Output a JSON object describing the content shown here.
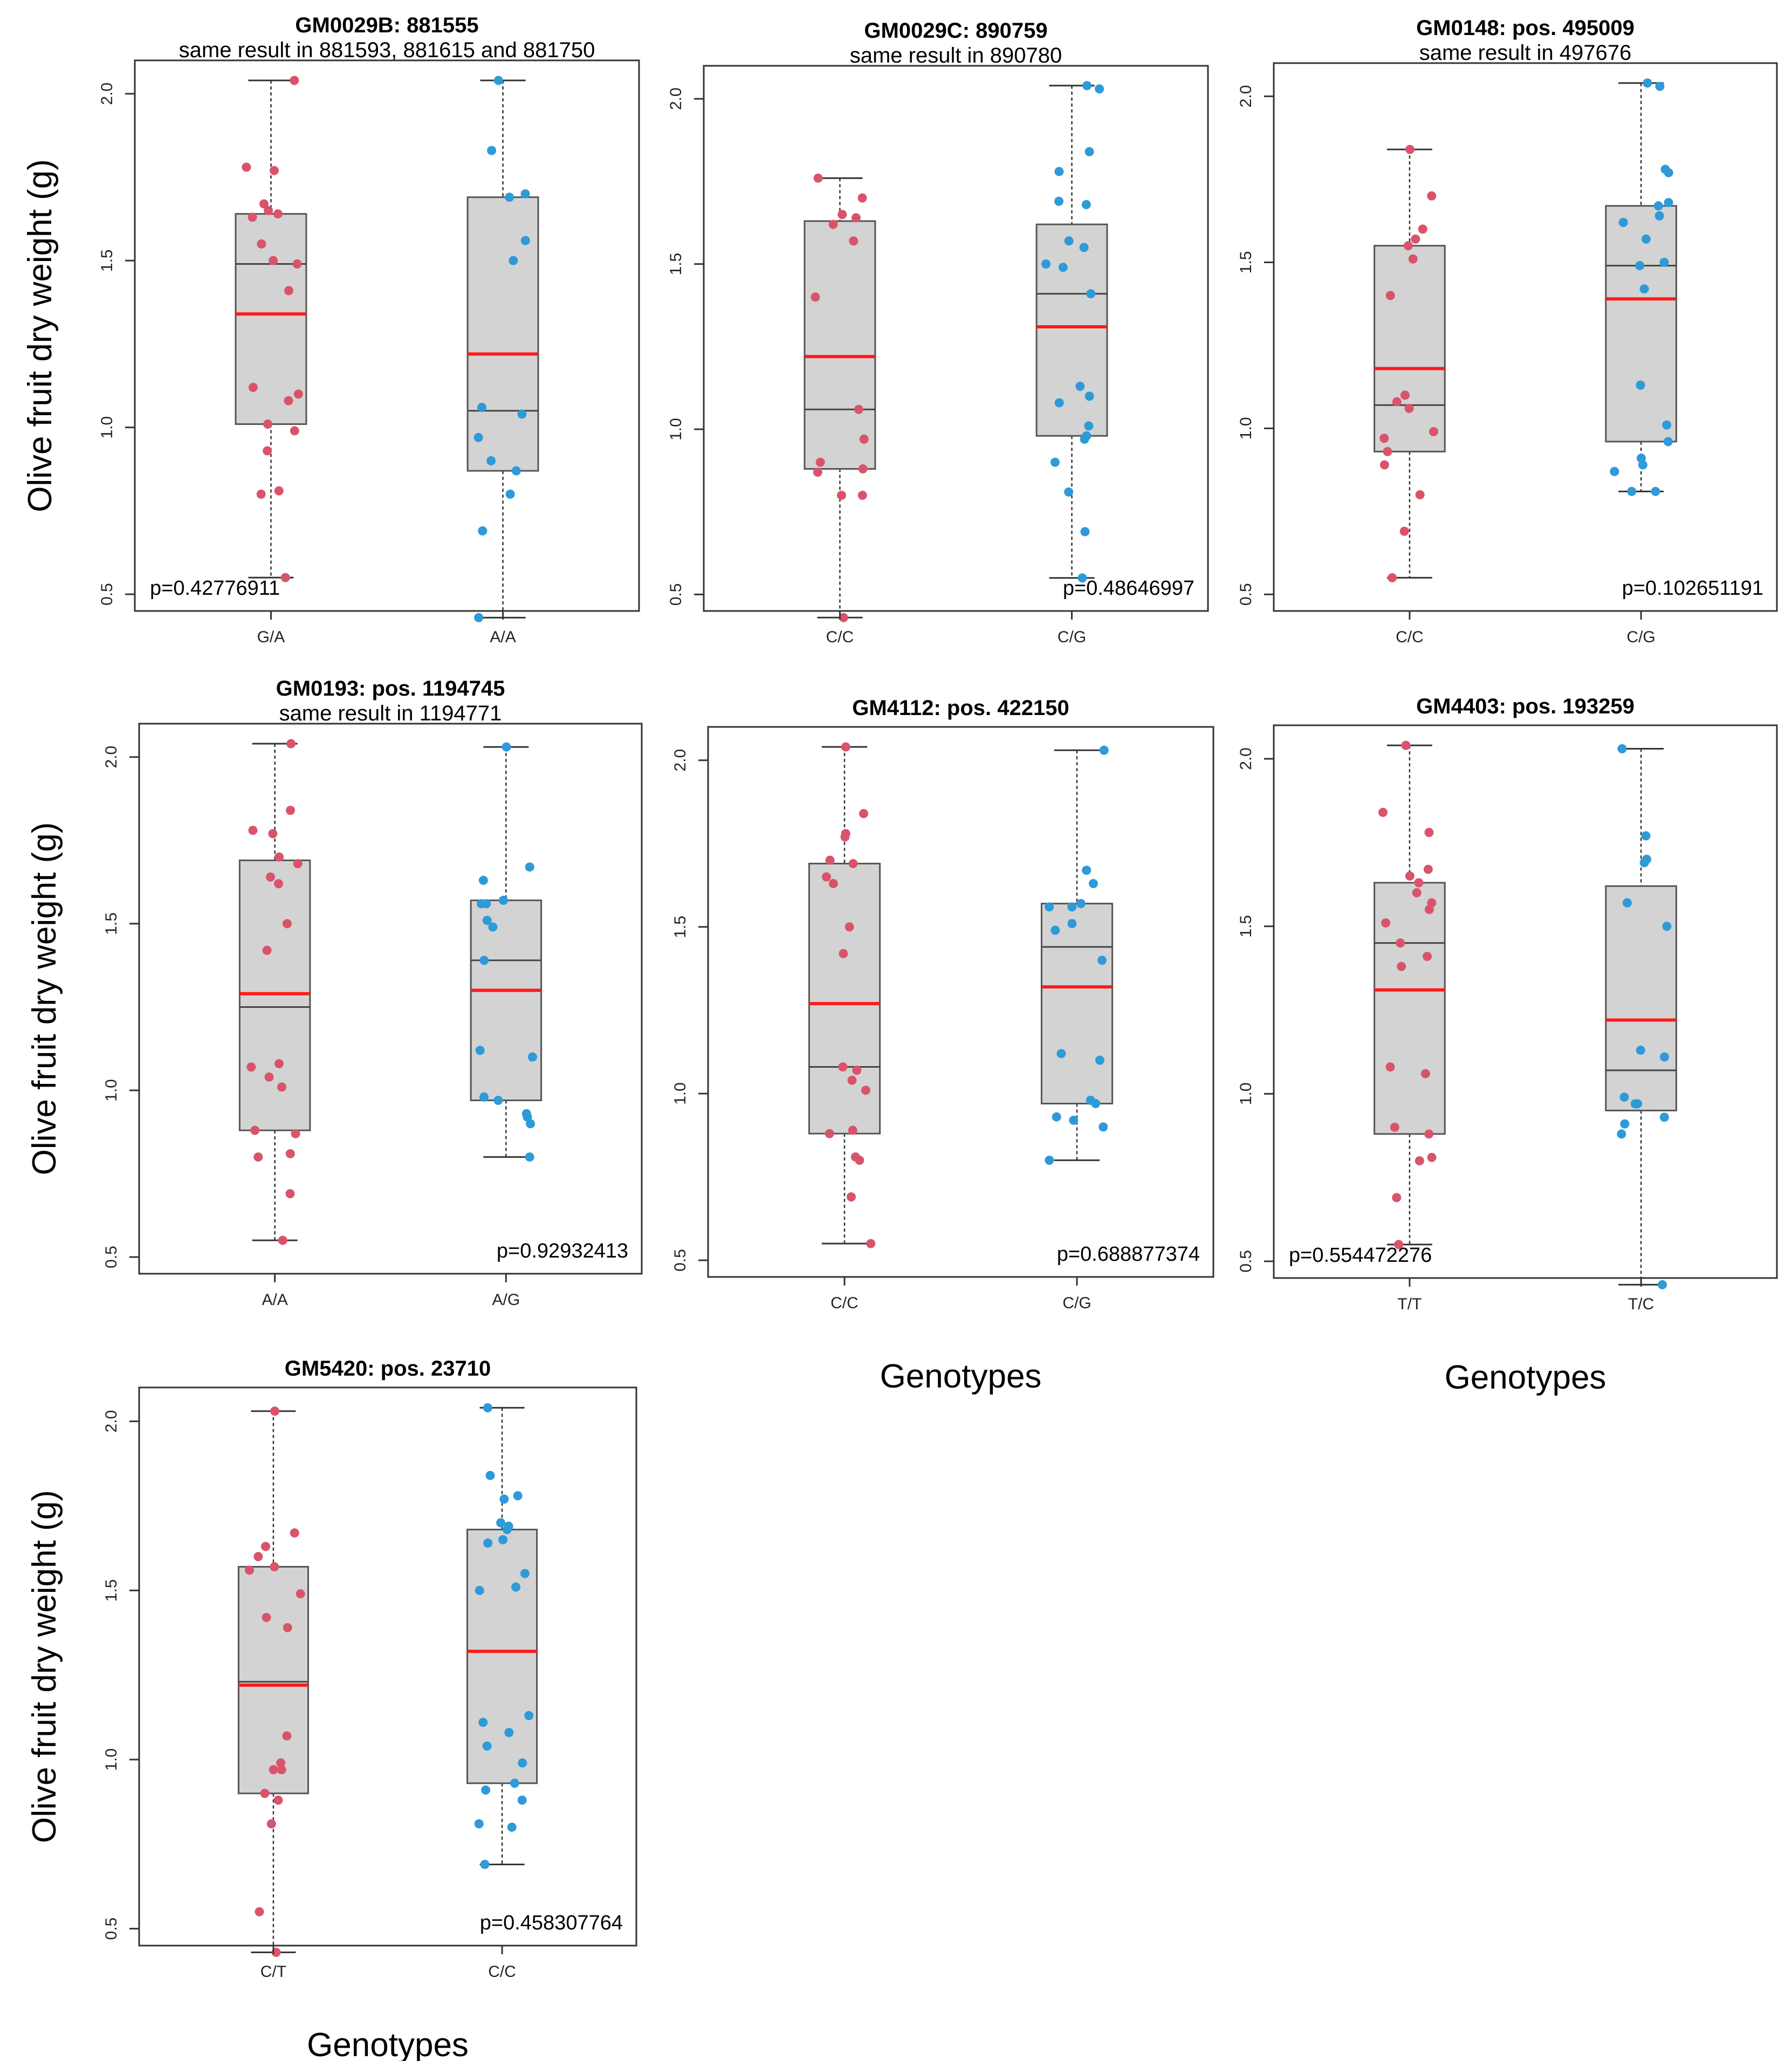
{
  "figure": {
    "ylabel": "Olive fruit dry weight (g)",
    "xlabel": "Genotypes"
  },
  "colors": {
    "group1": "#d9546a",
    "group2": "#2e9ad8",
    "mean": "#ff1a1a",
    "box_fill": "#d3d3d3",
    "box_edge": "#555555"
  },
  "chart_data": [
    {
      "type": "box",
      "title": "GM0029B: 881555",
      "subtitle": "same result in 881593, 881615 and 881750",
      "ylabel": "Olive fruit dry weight (g)",
      "xlabel": "",
      "ylim": [
        0.45,
        2.1
      ],
      "yticks": [
        "0.5",
        "1.0",
        "1.5",
        "2.0"
      ],
      "pvalue": "p=0.42776911",
      "pvalue_position": "bottom-left",
      "groups": [
        {
          "label": "G/A",
          "min": 0.55,
          "q1": 1.01,
          "median": 1.49,
          "q3": 1.64,
          "max": 2.04,
          "mean": 1.34,
          "points": [
            2.04,
            1.78,
            1.77,
            1.67,
            1.65,
            1.64,
            1.63,
            1.55,
            1.5,
            1.49,
            1.41,
            1.12,
            1.1,
            1.08,
            1.01,
            0.99,
            0.93,
            0.81,
            0.8,
            0.55
          ]
        },
        {
          "label": "A/A",
          "min": 0.43,
          "q1": 0.87,
          "median": 1.05,
          "q3": 1.69,
          "max": 2.04,
          "mean": 1.22,
          "points": [
            2.04,
            1.83,
            1.7,
            1.69,
            1.56,
            1.5,
            1.06,
            1.04,
            0.97,
            0.9,
            0.87,
            0.8,
            0.69,
            0.43
          ]
        }
      ]
    },
    {
      "type": "box",
      "title": "GM0029C: 890759",
      "subtitle": "same result in 890780",
      "ylabel": "",
      "xlabel": "",
      "ylim": [
        0.45,
        2.1
      ],
      "yticks": [
        "0.5",
        "1.0",
        "1.5",
        "2.0"
      ],
      "pvalue": "p=0.48646997",
      "pvalue_position": "bottom-right",
      "groups": [
        {
          "label": "C/C",
          "min": 0.43,
          "q1": 0.88,
          "median": 1.06,
          "q3": 1.63,
          "max": 1.76,
          "mean": 1.22,
          "points": [
            1.76,
            1.7,
            1.65,
            1.64,
            1.62,
            1.57,
            1.4,
            1.06,
            0.97,
            0.9,
            0.88,
            0.87,
            0.8,
            0.8,
            0.43
          ]
        },
        {
          "label": "C/G",
          "min": 0.55,
          "q1": 0.98,
          "median": 1.41,
          "q3": 1.62,
          "max": 2.04,
          "mean": 1.31,
          "points": [
            2.04,
            2.03,
            1.84,
            1.78,
            1.69,
            1.68,
            1.57,
            1.55,
            1.5,
            1.49,
            1.41,
            1.13,
            1.1,
            1.08,
            1.01,
            0.98,
            0.97,
            0.9,
            0.81,
            0.69,
            0.55
          ]
        }
      ]
    },
    {
      "type": "box",
      "title": "GM0148: pos. 495009",
      "subtitle": "same result in 497676",
      "ylabel": "",
      "xlabel": "",
      "ylim": [
        0.45,
        2.1
      ],
      "yticks": [
        "0.5",
        "1.0",
        "1.5",
        "2.0"
      ],
      "pvalue": "p=0.102651191",
      "pvalue_position": "bottom-right",
      "groups": [
        {
          "label": "C/C",
          "min": 0.55,
          "q1": 0.93,
          "median": 1.07,
          "q3": 1.55,
          "max": 1.84,
          "mean": 1.18,
          "points": [
            1.84,
            1.7,
            1.6,
            1.57,
            1.55,
            1.51,
            1.4,
            1.1,
            1.08,
            1.06,
            0.99,
            0.97,
            0.93,
            0.89,
            0.8,
            0.69,
            0.55
          ]
        },
        {
          "label": "C/G",
          "min": 0.81,
          "q1": 0.96,
          "median": 1.49,
          "q3": 1.67,
          "max": 2.04,
          "mean": 1.39,
          "points": [
            2.04,
            2.03,
            1.78,
            1.77,
            1.68,
            1.67,
            1.64,
            1.62,
            1.57,
            1.5,
            1.49,
            1.42,
            1.13,
            1.01,
            0.96,
            0.91,
            0.89,
            0.87,
            0.81,
            0.81
          ]
        }
      ]
    },
    {
      "type": "box",
      "title": "GM0193: pos. 1194745",
      "subtitle": "same result in 1194771",
      "ylabel": "Olive fruit dry weight (g)",
      "xlabel": "",
      "ylim": [
        0.45,
        2.1
      ],
      "yticks": [
        "0.5",
        "1.0",
        "1.5",
        "2.0"
      ],
      "pvalue": "p=0.92932413",
      "pvalue_position": "bottom-right",
      "groups": [
        {
          "label": "A/A",
          "min": 0.55,
          "q1": 0.88,
          "median": 1.25,
          "q3": 1.69,
          "max": 2.04,
          "mean": 1.29,
          "points": [
            2.04,
            1.84,
            1.78,
            1.77,
            1.7,
            1.68,
            1.64,
            1.62,
            1.5,
            1.42,
            1.08,
            1.07,
            1.04,
            1.01,
            0.88,
            0.87,
            0.81,
            0.8,
            0.69,
            0.55
          ]
        },
        {
          "label": "A/G",
          "min": 0.8,
          "q1": 0.97,
          "median": 1.39,
          "q3": 1.57,
          "max": 2.03,
          "mean": 1.3,
          "points": [
            2.03,
            1.67,
            1.63,
            1.57,
            1.56,
            1.56,
            1.51,
            1.49,
            1.39,
            1.12,
            1.1,
            0.98,
            0.97,
            0.93,
            0.92,
            0.9,
            0.8
          ]
        }
      ]
    },
    {
      "type": "box",
      "title": "GM4112: pos. 422150",
      "subtitle": "",
      "ylabel": "",
      "xlabel": "Genotypes",
      "ylim": [
        0.45,
        2.1
      ],
      "yticks": [
        "0.5",
        "1.0",
        "1.5",
        "2.0"
      ],
      "pvalue": "p=0.688877374",
      "pvalue_position": "bottom-right",
      "groups": [
        {
          "label": "C/C",
          "min": 0.55,
          "q1": 0.88,
          "median": 1.08,
          "q3": 1.69,
          "max": 2.04,
          "mean": 1.27,
          "points": [
            2.04,
            1.84,
            1.78,
            1.77,
            1.7,
            1.69,
            1.65,
            1.63,
            1.5,
            1.42,
            1.08,
            1.07,
            1.04,
            1.01,
            0.89,
            0.88,
            0.81,
            0.8,
            0.69,
            0.55
          ]
        },
        {
          "label": "C/G",
          "min": 0.8,
          "q1": 0.97,
          "median": 1.44,
          "q3": 1.57,
          "max": 2.03,
          "mean": 1.32,
          "points": [
            2.03,
            1.67,
            1.63,
            1.57,
            1.56,
            1.56,
            1.51,
            1.49,
            1.4,
            1.12,
            1.1,
            0.98,
            0.97,
            0.93,
            0.92,
            0.9,
            0.8
          ]
        }
      ]
    },
    {
      "type": "box",
      "title": "GM4403: pos. 193259",
      "subtitle": "",
      "ylabel": "",
      "xlabel": "Genotypes",
      "ylim": [
        0.45,
        2.1
      ],
      "yticks": [
        "0.5",
        "1.0",
        "1.5",
        "2.0"
      ],
      "pvalue": "p=0.554472276",
      "pvalue_position": "bottom-left",
      "groups": [
        {
          "label": "T/T",
          "min": 0.55,
          "q1": 0.88,
          "median": 1.45,
          "q3": 1.63,
          "max": 2.04,
          "mean": 1.31,
          "points": [
            2.04,
            1.84,
            1.78,
            1.67,
            1.65,
            1.63,
            1.6,
            1.57,
            1.55,
            1.51,
            1.45,
            1.41,
            1.38,
            1.08,
            1.06,
            0.9,
            0.88,
            0.81,
            0.8,
            0.69,
            0.55
          ]
        },
        {
          "label": "T/C",
          "min": 0.43,
          "q1": 0.95,
          "median": 1.07,
          "q3": 1.62,
          "max": 2.03,
          "mean": 1.22,
          "points": [
            2.03,
            1.77,
            1.7,
            1.69,
            1.57,
            1.5,
            1.13,
            1.11,
            0.99,
            0.97,
            0.97,
            0.93,
            0.91,
            0.88,
            0.43
          ]
        }
      ]
    },
    {
      "type": "box",
      "title": "GM5420: pos. 23710",
      "subtitle": "",
      "ylabel": "Olive fruit dry weight (g)",
      "xlabel": "Genotypes",
      "ylim": [
        0.45,
        2.1
      ],
      "yticks": [
        "0.5",
        "1.0",
        "1.5",
        "2.0"
      ],
      "pvalue": "p=0.458307764",
      "pvalue_position": "bottom-right",
      "groups": [
        {
          "label": "C/T",
          "min": 0.43,
          "q1": 0.9,
          "median": 1.23,
          "q3": 1.57,
          "max": 2.03,
          "mean": 1.22,
          "points": [
            2.03,
            1.67,
            1.63,
            1.6,
            1.57,
            1.56,
            1.49,
            1.42,
            1.39,
            1.07,
            0.99,
            0.97,
            0.97,
            0.9,
            0.88,
            0.81,
            0.55,
            0.43
          ]
        },
        {
          "label": "C/C",
          "min": 0.69,
          "q1": 0.93,
          "median": 1.32,
          "q3": 1.68,
          "max": 2.04,
          "mean": 1.32,
          "points": [
            2.04,
            1.84,
            1.78,
            1.77,
            1.7,
            1.69,
            1.68,
            1.65,
            1.64,
            1.55,
            1.51,
            1.5,
            1.13,
            1.11,
            1.08,
            1.04,
            0.99,
            0.93,
            0.91,
            0.88,
            0.81,
            0.8,
            0.69
          ]
        }
      ]
    }
  ]
}
